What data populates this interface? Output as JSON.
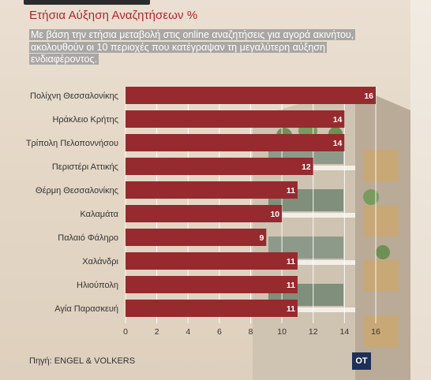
{
  "header": {
    "title": "Ετήσια Αύξηση Αναζητήσεων %",
    "subtitle": "Με βάση την ετήσια μεταβολή στις online αναζητήσεις για αγορά ακινήτου, ακολουθούν οι 10 περιοχές που κατέγραψαν τη μεγαλύτερη αύξηση ενδιαφέροντος."
  },
  "chart_data": {
    "type": "bar",
    "orientation": "horizontal",
    "title": "Ετήσια Αύξηση Αναζητήσεων %",
    "categories": [
      "Πολίχνη Θεσσαλονίκης",
      "Ηράκλειο Κρήτης",
      "Τρίπολη Πελοποννήσου",
      "Περιστέρι Αττικής",
      "Θέρμη Θεσσαλονίκης",
      "Καλαμάτα",
      "Παλαιό Φάληρο",
      "Χαλάνδρι",
      "Ηλιούπολη",
      "Αγία Παρασκευή"
    ],
    "values": [
      16,
      14,
      14,
      12,
      11,
      10,
      9,
      11,
      11,
      11
    ],
    "xlim": [
      0,
      16
    ],
    "xticks": [
      0,
      2,
      4,
      6,
      8,
      10,
      12,
      14,
      16
    ],
    "grid": true,
    "bar_color": "#962a2e",
    "label_color": "#ffffff"
  },
  "footer": {
    "source": "Πηγή: ENGEL & VOLKERS",
    "logo_text": "OT"
  },
  "colors": {
    "title": "#b5222b",
    "bar": "#962a2e",
    "logo_bg": "#1f2f57"
  }
}
